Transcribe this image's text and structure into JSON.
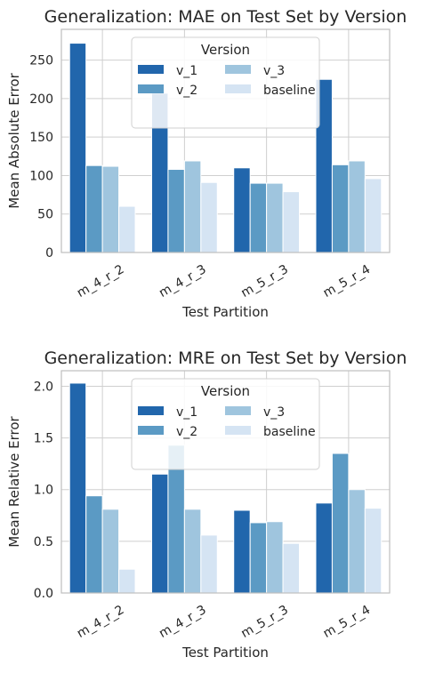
{
  "chart_data": [
    {
      "type": "bar",
      "title": "Generalization: MAE on Test Set by Version",
      "xlabel": "Test Partition",
      "ylabel": "Mean Absolute Error",
      "categories": [
        "m_4_r_2",
        "m_4_r_3",
        "m_5_r_3",
        "m_5_r_4"
      ],
      "ylim": [
        0,
        290
      ],
      "yticks": [
        0,
        50,
        100,
        150,
        200,
        250
      ],
      "grid": true,
      "legend": {
        "title": "Version",
        "position": "top-center"
      },
      "series": [
        {
          "name": "v_1",
          "color": "#2166ac",
          "values": [
            272,
            207,
            110,
            225
          ]
        },
        {
          "name": "v_2",
          "color": "#5b9ac4",
          "values": [
            113,
            108,
            90,
            114
          ]
        },
        {
          "name": "v_3",
          "color": "#9fc5de",
          "values": [
            112,
            119,
            90,
            119
          ]
        },
        {
          "name": "baseline",
          "color": "#d5e4f3",
          "values": [
            60,
            91,
            79,
            96
          ]
        }
      ]
    },
    {
      "type": "bar",
      "title": "Generalization: MRE on Test Set by Version",
      "xlabel": "Test Partition",
      "ylabel": "Mean Relative Error",
      "categories": [
        "m_4_r_2",
        "m_4_r_3",
        "m_5_r_3",
        "m_5_r_4"
      ],
      "ylim": [
        0,
        2.15
      ],
      "yticks": [
        "0.0",
        "0.5",
        "1.0",
        "1.5",
        "2.0"
      ],
      "grid": true,
      "legend": {
        "title": "Version",
        "position": "top-center"
      },
      "series": [
        {
          "name": "v_1",
          "color": "#2166ac",
          "values": [
            2.03,
            1.15,
            0.8,
            0.87
          ]
        },
        {
          "name": "v_2",
          "color": "#5b9ac4",
          "values": [
            0.94,
            1.43,
            0.68,
            1.35
          ]
        },
        {
          "name": "v_3",
          "color": "#9fc5de",
          "values": [
            0.81,
            0.81,
            0.69,
            1.0
          ]
        },
        {
          "name": "baseline",
          "color": "#d5e4f3",
          "values": [
            0.23,
            0.56,
            0.48,
            0.82
          ]
        }
      ]
    }
  ]
}
